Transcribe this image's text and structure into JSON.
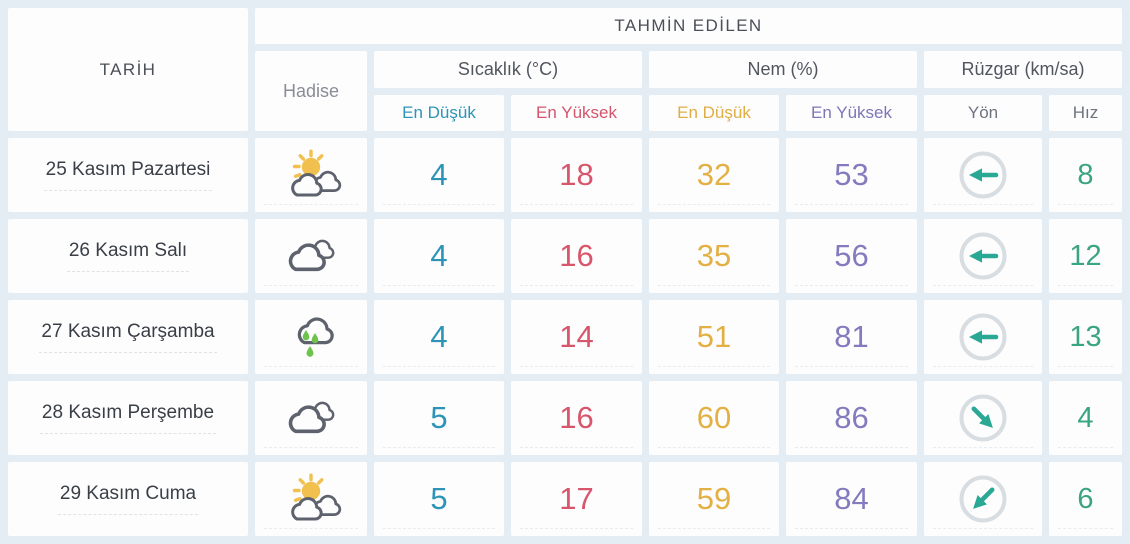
{
  "header": {
    "tarih": "TARİH",
    "tahmin_edilen": "TAHMİN EDİLEN",
    "hadise": "Hadise",
    "sicaklik": "Sıcaklık (°C)",
    "nem": "Nem (%)",
    "ruzgar": "Rüzgar (km/sa)",
    "temp_min_label": "En Düşük",
    "temp_max_label": "En Yüksek",
    "hum_min_label": "En Düşük",
    "hum_max_label": "En Yüksek",
    "yon": "Yön",
    "hiz": "Hız"
  },
  "rows": [
    {
      "date": "25 Kasım Pazartesi",
      "condition": "sun-behind-clouds",
      "temp_min": "4",
      "temp_max": "18",
      "humidity_min": "32",
      "humidity_max": "53",
      "wind_direction": "left",
      "wind_rotation_deg": 180,
      "wind_speed": "8"
    },
    {
      "date": "26 Kasım Salı",
      "condition": "cloudy",
      "temp_min": "4",
      "temp_max": "16",
      "humidity_min": "35",
      "humidity_max": "56",
      "wind_direction": "left",
      "wind_rotation_deg": 180,
      "wind_speed": "12"
    },
    {
      "date": "27 Kasım Çarşamba",
      "condition": "rainy",
      "temp_min": "4",
      "temp_max": "14",
      "humidity_min": "51",
      "humidity_max": "81",
      "wind_direction": "left",
      "wind_rotation_deg": 180,
      "wind_speed": "13"
    },
    {
      "date": "28 Kasım Perşembe",
      "condition": "cloudy",
      "temp_min": "5",
      "temp_max": "16",
      "humidity_min": "60",
      "humidity_max": "86",
      "wind_direction": "down-right",
      "wind_rotation_deg": 45,
      "wind_speed": "4"
    },
    {
      "date": "29 Kasım Cuma",
      "condition": "sun-behind-clouds",
      "temp_min": "5",
      "temp_max": "17",
      "humidity_min": "59",
      "humidity_max": "84",
      "wind_direction": "down-left",
      "wind_rotation_deg": 135,
      "wind_speed": "6"
    }
  ],
  "colors": {
    "background": "#e4edf4",
    "cell": "#fdfdfe",
    "temp_min": "#2d93b7",
    "temp_max": "#d8566b",
    "humidity_min": "#e3b044",
    "humidity_max": "#837bbe",
    "wind_speed": "#3ba483",
    "wind_arrow": "#2aa894",
    "wind_ring": "#d8dde2",
    "sun": "#f1c04e",
    "rain_drop": "#6fc24c",
    "cloud_outline": "#5d626d"
  }
}
